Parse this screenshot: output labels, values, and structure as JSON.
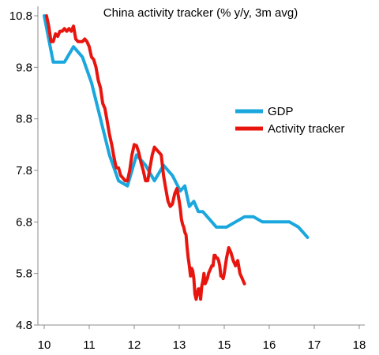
{
  "chart_data": {
    "type": "line",
    "title": "China activity tracker (% y/y, 3m avg)",
    "xlabel": "",
    "ylabel": "",
    "xlim": [
      10,
      18.1
    ],
    "ylim": [
      4.8,
      10.8
    ],
    "x_ticks": [
      10,
      11,
      12,
      13,
      15,
      16,
      17,
      18
    ],
    "x_tick_labels": [
      "10",
      "11",
      "12",
      "13",
      "15",
      "16",
      "17",
      "18"
    ],
    "y_ticks": [
      4.8,
      5.8,
      6.8,
      7.8,
      8.8,
      9.8,
      10.8
    ],
    "y_tick_labels": [
      "4.8",
      "5.8",
      "6.8",
      "7.8",
      "8.8",
      "9.8",
      "10.8"
    ],
    "grid": false,
    "legend_position": "right",
    "series": [
      {
        "name": "GDP",
        "color": "#1aa7dd",
        "points": [
          [
            10.0,
            10.8
          ],
          [
            10.2,
            9.9
          ],
          [
            10.45,
            9.9
          ],
          [
            10.65,
            10.2
          ],
          [
            10.85,
            10.0
          ],
          [
            11.05,
            9.5
          ],
          [
            11.25,
            8.8
          ],
          [
            11.45,
            8.1
          ],
          [
            11.65,
            7.6
          ],
          [
            11.85,
            7.5
          ],
          [
            12.05,
            8.1
          ],
          [
            12.25,
            7.9
          ],
          [
            12.45,
            7.6
          ],
          [
            12.65,
            7.9
          ],
          [
            12.85,
            7.7
          ],
          [
            13.05,
            7.4
          ],
          [
            13.25,
            7.5
          ],
          [
            13.45,
            7.1
          ],
          [
            13.65,
            7.2
          ],
          [
            13.85,
            7.0
          ],
          [
            14.05,
            7.0
          ],
          [
            14.25,
            6.9
          ],
          [
            14.45,
            6.8
          ],
          [
            14.65,
            6.7
          ],
          [
            14.85,
            6.7
          ],
          [
            15.05,
            6.7
          ],
          [
            15.25,
            6.8
          ],
          [
            15.45,
            6.9
          ],
          [
            15.65,
            6.9
          ],
          [
            15.85,
            6.8
          ],
          [
            16.05,
            6.8
          ],
          [
            16.25,
            6.8
          ],
          [
            16.45,
            6.8
          ],
          [
            16.65,
            6.7
          ],
          [
            16.85,
            6.5
          ]
        ]
      },
      {
        "name": "Activity tracker",
        "color": "#e8150e",
        "points": [
          [
            10.05,
            10.8
          ],
          [
            10.1,
            10.6
          ],
          [
            10.15,
            10.3
          ],
          [
            10.2,
            10.3
          ],
          [
            10.25,
            10.45
          ],
          [
            10.3,
            10.4
          ],
          [
            10.35,
            10.5
          ],
          [
            10.4,
            10.5
          ],
          [
            10.45,
            10.55
          ],
          [
            10.5,
            10.5
          ],
          [
            10.55,
            10.55
          ],
          [
            10.6,
            10.5
          ],
          [
            10.65,
            10.6
          ],
          [
            10.7,
            10.35
          ],
          [
            10.75,
            10.3
          ],
          [
            10.8,
            10.3
          ],
          [
            10.85,
            10.3
          ],
          [
            10.9,
            10.35
          ],
          [
            10.95,
            10.3
          ],
          [
            11.0,
            10.2
          ],
          [
            11.05,
            10.0
          ],
          [
            11.1,
            9.95
          ],
          [
            11.15,
            9.8
          ],
          [
            11.2,
            9.55
          ],
          [
            11.25,
            9.4
          ],
          [
            11.3,
            9.1
          ],
          [
            11.35,
            9.0
          ],
          [
            11.4,
            8.75
          ],
          [
            11.45,
            8.5
          ],
          [
            11.5,
            8.3
          ],
          [
            11.55,
            8.05
          ],
          [
            11.6,
            7.85
          ],
          [
            11.65,
            7.85
          ],
          [
            11.7,
            7.7
          ],
          [
            11.75,
            7.65
          ],
          [
            11.8,
            7.6
          ],
          [
            11.85,
            7.6
          ],
          [
            11.9,
            7.8
          ],
          [
            11.95,
            8.1
          ],
          [
            12.0,
            8.3
          ],
          [
            12.05,
            8.28
          ],
          [
            12.1,
            8.15
          ],
          [
            12.15,
            7.95
          ],
          [
            12.2,
            7.8
          ],
          [
            12.25,
            7.6
          ],
          [
            12.3,
            7.6
          ],
          [
            12.35,
            7.85
          ],
          [
            12.4,
            8.1
          ],
          [
            12.45,
            8.25
          ],
          [
            12.5,
            8.2
          ],
          [
            12.55,
            8.15
          ],
          [
            12.6,
            8.1
          ],
          [
            12.65,
            7.7
          ],
          [
            12.7,
            7.45
          ],
          [
            12.75,
            7.2
          ],
          [
            12.8,
            7.1
          ],
          [
            12.85,
            7.15
          ],
          [
            12.9,
            7.35
          ],
          [
            12.95,
            7.45
          ],
          [
            13.0,
            7.2
          ],
          [
            13.05,
            7.05
          ],
          [
            13.1,
            6.85
          ],
          [
            13.15,
            6.75
          ],
          [
            13.2,
            6.7
          ],
          [
            13.25,
            6.6
          ],
          [
            13.3,
            6.55
          ],
          [
            13.35,
            6.3
          ],
          [
            13.4,
            6.1
          ],
          [
            13.45,
            5.95
          ],
          [
            13.5,
            5.75
          ],
          [
            13.55,
            5.9
          ],
          [
            13.6,
            5.85
          ],
          [
            13.65,
            5.7
          ],
          [
            13.7,
            5.4
          ],
          [
            13.75,
            5.3
          ],
          [
            13.8,
            5.4
          ],
          [
            13.85,
            5.5
          ],
          [
            13.9,
            5.5
          ],
          [
            13.95,
            5.3
          ],
          [
            14.0,
            5.55
          ],
          [
            14.05,
            5.65
          ],
          [
            14.1,
            5.8
          ],
          [
            14.15,
            5.6
          ],
          [
            14.2,
            5.65
          ],
          [
            14.25,
            5.7
          ],
          [
            14.3,
            5.8
          ],
          [
            14.35,
            5.85
          ],
          [
            14.4,
            5.9
          ],
          [
            14.45,
            5.95
          ],
          [
            14.5,
            5.95
          ],
          [
            14.55,
            6.15
          ],
          [
            14.6,
            6.15
          ],
          [
            14.65,
            6.1
          ],
          [
            14.7,
            6.1
          ],
          [
            14.75,
            6.05
          ],
          [
            14.8,
            5.95
          ],
          [
            14.85,
            5.75
          ],
          [
            14.9,
            5.75
          ],
          [
            14.95,
            5.7
          ],
          [
            15.0,
            5.8
          ],
          [
            15.05,
            6.1
          ],
          [
            15.1,
            6.3
          ],
          [
            15.15,
            6.2
          ],
          [
            15.2,
            6.05
          ],
          [
            15.25,
            5.95
          ],
          [
            15.3,
            6.05
          ],
          [
            15.35,
            5.8
          ],
          [
            15.4,
            5.7
          ],
          [
            15.45,
            5.6
          ]
        ]
      }
    ]
  }
}
